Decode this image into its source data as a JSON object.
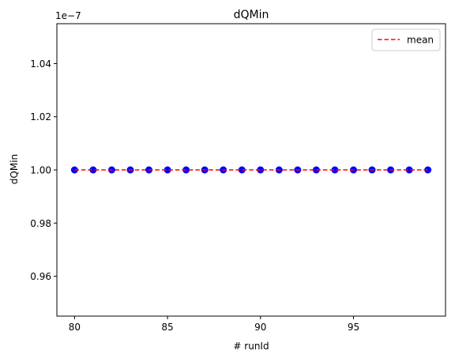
{
  "chart_data": {
    "type": "scatter",
    "title": "dQMin",
    "xlabel": "# runId",
    "ylabel": "dQMin",
    "offset_label": "1e−7",
    "xlim": [
      79.05,
      99.95
    ],
    "ylim": [
      0.945,
      1.055
    ],
    "xticks": [
      80,
      85,
      90,
      95
    ],
    "xtick_labels": [
      "80",
      "85",
      "90",
      "95"
    ],
    "yticks": [
      0.96,
      0.98,
      1.0,
      1.02,
      1.04
    ],
    "ytick_labels": [
      "0.96",
      "0.98",
      "1.00",
      "1.02",
      "1.04"
    ],
    "grid": false,
    "legend_position": "top-right",
    "series": [
      {
        "kind": "scatter",
        "color": "#0000ff",
        "x": [
          80,
          81,
          82,
          83,
          84,
          85,
          86,
          87,
          88,
          89,
          90,
          91,
          92,
          93,
          94,
          95,
          96,
          97,
          98,
          99
        ],
        "y": [
          1.0,
          1.0,
          1.0,
          1.0,
          1.0,
          1.0,
          1.0,
          1.0,
          1.0,
          1.0,
          1.0,
          1.0,
          1.0,
          1.0,
          1.0,
          1.0,
          1.0,
          1.0,
          1.0,
          1.0
        ]
      },
      {
        "kind": "line",
        "name": "mean",
        "color": "#ff0000",
        "dashed": true,
        "x": [
          80,
          99
        ],
        "y": [
          1.0,
          1.0
        ]
      }
    ]
  }
}
